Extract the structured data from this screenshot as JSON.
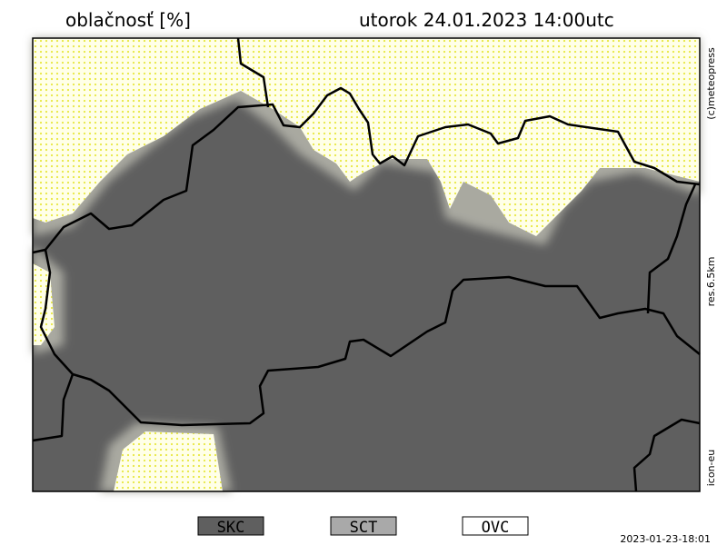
{
  "header": {
    "title": "oblačnosť [%]",
    "datetime": "utorok 24.01.2023 14:00utc"
  },
  "side_labels": [
    "(c)meteopress",
    "res.6.5km",
    "icon-eu"
  ],
  "legend": [
    "SKC",
    "SCT",
    "OVC"
  ],
  "footer": {
    "timestamp": "2023-01-23-18:01"
  }
}
